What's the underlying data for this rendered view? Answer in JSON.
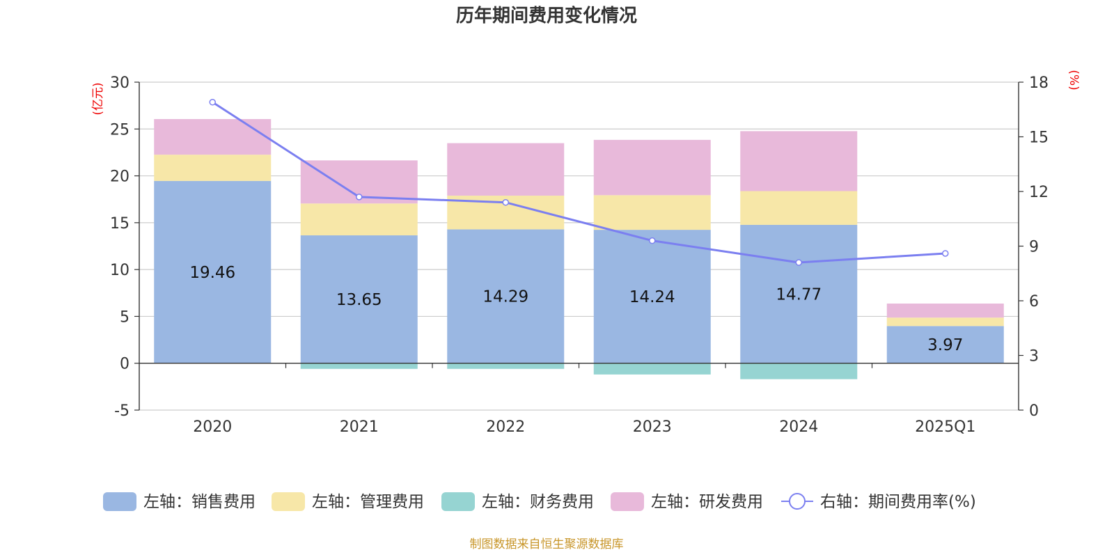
{
  "title": "历年期间费用变化情况",
  "source": "制图数据来自恒生聚源数据库",
  "colors": {
    "sales": "#9ab7e2",
    "admin": "#f7e7a8",
    "finance": "#96d4d2",
    "rd": "#e8b9da",
    "ratio": "#7b7ff0"
  },
  "chart_data": {
    "type": "bar",
    "stacked": true,
    "categories": [
      "2020",
      "2021",
      "2022",
      "2023",
      "2024",
      "2025Q1"
    ],
    "left_axis": {
      "unit": "(亿元)",
      "min": -5,
      "max": 30,
      "step": 5,
      "ticks": [
        "-5",
        "0",
        "5",
        "10",
        "15",
        "20",
        "25",
        "30"
      ]
    },
    "right_axis": {
      "unit": "(%)",
      "min": 0,
      "max": 18,
      "step": 3,
      "ticks": [
        "0",
        "3",
        "6",
        "9",
        "12",
        "15",
        "18"
      ]
    },
    "series": [
      {
        "key": "sales",
        "name": "左轴：销售费用",
        "axis": "left",
        "values": [
          19.46,
          13.65,
          14.29,
          14.24,
          14.77,
          3.97
        ],
        "labels": [
          "19.46",
          "13.65",
          "14.29",
          "14.24",
          "14.77",
          "3.97"
        ]
      },
      {
        "key": "admin",
        "name": "左轴：管理费用",
        "axis": "left",
        "values": [
          2.8,
          3.4,
          3.6,
          3.7,
          3.6,
          0.9
        ]
      },
      {
        "key": "finance",
        "name": "左轴：财务费用",
        "axis": "left",
        "values": [
          0.0,
          -0.6,
          -0.6,
          -1.2,
          -1.7,
          0.0
        ]
      },
      {
        "key": "rd",
        "name": "左轴：研发费用",
        "axis": "left",
        "values": [
          3.8,
          4.6,
          5.6,
          5.9,
          6.4,
          1.5
        ]
      },
      {
        "key": "ratio",
        "name": "右轴：期间费用率(%)",
        "axis": "right",
        "type": "line",
        "values": [
          16.9,
          11.7,
          11.4,
          9.3,
          8.1,
          8.6
        ]
      }
    ]
  }
}
